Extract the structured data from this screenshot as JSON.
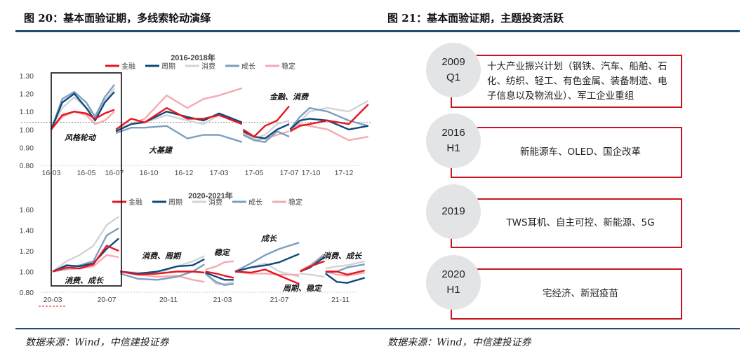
{
  "left_figure": {
    "title": "图 20：基本面验证期，多线索轮动演绎",
    "source": "数据来源：Wind，中信建投证券"
  },
  "right_figure": {
    "title": "图 21：基本面验证期，主题投资活跃",
    "source": "数据来源：Wind，中信建投证券",
    "items": [
      {
        "year": "2009",
        "period": "Q1",
        "text": "十大产业振兴计划（钢铁、汽车、船舶、石化、纺织、轻工、有色金属、装备制造、电子信息以及物流业）、军工企业重组"
      },
      {
        "year": "2016",
        "period": "H1",
        "text": "新能源车、OLED、国企改革"
      },
      {
        "year": "2019",
        "period": "",
        "text": "TWS耳机、自主可控、新能源、5G"
      },
      {
        "year": "2020",
        "period": "H1",
        "text": "宅经济、新冠疫苗"
      }
    ],
    "accent_color": "#c8141e"
  },
  "colors": {
    "rule": "#1f4e79",
    "金融": "#e8141e",
    "周期": "#0d4a7a",
    "消费": "#d0d4d8",
    "成长": "#7d9fbf",
    "稳定": "#f4aab0"
  },
  "chart_data": [
    {
      "type": "line",
      "title": "2016-2018年",
      "series_names": [
        "金融",
        "周期",
        "消费",
        "成长",
        "稳定"
      ],
      "ylim": [
        0.8,
        1.3
      ],
      "yticks": [
        "1.30",
        "1.20",
        "1.10",
        "1.00",
        "0.90",
        "0.80"
      ],
      "xticks": [
        "16-03",
        "16-05",
        "16-07",
        "16-10",
        "16-12",
        "17-03",
        "17-05",
        "17-07",
        "17-10",
        "17-12"
      ],
      "reference_line": 1.04,
      "annotations": [
        "风格轮动",
        "大基建",
        "金融、消费"
      ],
      "segments": [
        {
          "x": [
            "2016-03-01",
            "2016-03-20",
            "2016-04-10",
            "2016-05-01",
            "2016-05-20",
            "2016-06-10",
            "2016-07-01"
          ],
          "series": {
            "金融": [
              1.0,
              1.08,
              1.1,
              1.09,
              1.06,
              1.09,
              1.11
            ],
            "周期": [
              1.0,
              1.15,
              1.2,
              1.12,
              1.05,
              1.15,
              1.21
            ],
            "消费": [
              1.0,
              1.12,
              1.18,
              1.12,
              1.08,
              1.16,
              1.23
            ],
            "成长": [
              1.0,
              1.17,
              1.21,
              1.15,
              1.07,
              1.18,
              1.25
            ],
            "稳定": [
              1.0,
              1.07,
              1.1,
              1.08,
              1.03,
              1.05,
              1.1
            ]
          }
        },
        {
          "x": [
            "2016-07-05",
            "2016-08-15",
            "2016-09-20",
            "2016-11-01",
            "2016-12-10",
            "2017-01-20",
            "2017-03-01",
            "2017-04-10"
          ],
          "series": {
            "金融": [
              1.0,
              1.06,
              1.04,
              1.12,
              1.06,
              1.06,
              1.08,
              1.03
            ],
            "周期": [
              0.99,
              1.03,
              1.04,
              1.1,
              1.07,
              1.05,
              1.09,
              1.04
            ],
            "消费": [
              0.99,
              1.03,
              1.04,
              1.08,
              1.05,
              1.03,
              1.08,
              1.04
            ],
            "成长": [
              0.98,
              1.01,
              1.01,
              1.02,
              0.95,
              0.97,
              0.97,
              0.93
            ],
            "稳定": [
              1.0,
              1.03,
              1.06,
              1.19,
              1.12,
              1.17,
              1.19,
              1.23
            ]
          }
        },
        {
          "x": [
            "2017-04-12",
            "2017-05-01",
            "2017-05-20",
            "2017-06-10",
            "2017-07-01"
          ],
          "series": {
            "金融": [
              1.0,
              0.96,
              1.02,
              1.05,
              1.13
            ],
            "周期": [
              0.99,
              0.96,
              0.95,
              1.0,
              1.03
            ],
            "消费": [
              0.99,
              0.95,
              0.97,
              1.03,
              1.05
            ],
            "成长": [
              0.97,
              0.94,
              0.93,
              0.99,
              0.96
            ],
            "稳定": [
              0.98,
              0.94,
              0.95,
              0.97,
              0.99
            ]
          }
        },
        {
          "x": [
            "2017-07-05",
            "2017-08-15",
            "2017-09-25",
            "2017-11-01",
            "2017-12-10",
            "2018-01-15"
          ],
          "series": {
            "金融": [
              0.99,
              1.02,
              1.03,
              1.05,
              1.03,
              1.14
            ],
            "周期": [
              1.0,
              1.05,
              1.06,
              1.05,
              1.0,
              1.02
            ],
            "消费": [
              1.0,
              1.04,
              1.1,
              1.12,
              1.1,
              1.16
            ],
            "成长": [
              1.0,
              1.07,
              1.12,
              1.1,
              1.05,
              1.02
            ],
            "稳定": [
              1.0,
              1.03,
              1.02,
              1.0,
              0.94,
              0.96
            ]
          }
        }
      ]
    },
    {
      "type": "line",
      "title": "2020-2021年",
      "series_names": [
        "金融",
        "周期",
        "消费",
        "成长",
        "稳定"
      ],
      "ylim": [
        0.8,
        1.6
      ],
      "yticks": [
        "1.60",
        "1.40",
        "1.20",
        "1.00",
        "0.80"
      ],
      "xticks": [
        "20-03",
        "20-07",
        "20-11",
        "21-03",
        "21-07",
        "21-11"
      ],
      "annotations": [
        "消费、成长",
        "消费、周期",
        "稳定",
        "成长",
        "周期、稳定",
        "消费、成长"
      ],
      "segments": [
        {
          "x": [
            "2020-03-01",
            "2020-04-01",
            "2020-05-01",
            "2020-06-01",
            "2020-07-01",
            "2020-07-25"
          ],
          "series": {
            "金融": [
              1.0,
              1.04,
              1.03,
              1.07,
              1.25,
              1.2
            ],
            "周期": [
              1.0,
              1.06,
              1.05,
              1.08,
              1.22,
              1.32
            ],
            "消费": [
              1.0,
              1.1,
              1.16,
              1.25,
              1.45,
              1.53
            ],
            "成长": [
              1.0,
              1.03,
              1.06,
              1.1,
              1.35,
              1.42
            ],
            "稳定": [
              1.0,
              1.02,
              1.03,
              1.05,
              1.16,
              1.14
            ]
          }
        },
        {
          "x": [
            "2020-07-28",
            "2020-09-01",
            "2020-10-10",
            "2020-11-20",
            "2020-12-25",
            "2021-01-20"
          ],
          "series": {
            "金融": [
              1.0,
              0.97,
              0.98,
              1.0,
              1.0,
              0.99
            ],
            "周期": [
              1.0,
              0.98,
              1.0,
              1.05,
              1.06,
              1.12
            ],
            "消费": [
              1.0,
              0.99,
              0.98,
              1.05,
              1.1,
              1.15
            ],
            "成长": [
              0.98,
              0.93,
              0.92,
              0.95,
              1.0,
              1.07
            ],
            "稳定": [
              1.0,
              0.97,
              0.95,
              0.96,
              0.92,
              0.9
            ]
          }
        },
        {
          "x": [
            "2021-01-22",
            "2021-02-15",
            "2021-03-05",
            "2021-03-25"
          ],
          "series": {
            "金融": [
              1.0,
              0.98,
              0.96,
              0.94
            ],
            "周期": [
              0.99,
              0.95,
              0.92,
              0.92
            ],
            "消费": [
              0.98,
              0.88,
              0.88,
              0.9
            ],
            "成长": [
              0.98,
              0.9,
              0.87,
              0.88
            ],
            "稳定": [
              1.02,
              1.05,
              1.09,
              1.1
            ]
          }
        },
        {
          "x": [
            "2021-03-28",
            "2021-05-01",
            "2021-06-01",
            "2021-07-01",
            "2021-08-10"
          ],
          "series": {
            "金融": [
              1.0,
              0.99,
              1.02,
              0.96,
              0.88
            ],
            "周期": [
              1.0,
              1.04,
              1.06,
              1.09,
              1.17
            ],
            "消费": [
              1.0,
              1.04,
              1.08,
              1.0,
              0.95
            ],
            "成长": [
              1.0,
              1.08,
              1.16,
              1.22,
              1.28
            ],
            "稳定": [
              1.0,
              0.98,
              0.98,
              0.97,
              0.97
            ]
          }
        },
        {
          "x": [
            "2021-08-12",
            "2021-09-01",
            "2021-09-30"
          ],
          "series": {
            "金融": [
              1.0,
              1.05,
              1.1
            ],
            "周期": [
              1.0,
              1.04,
              1.14
            ],
            "消费": [
              0.98,
              0.97,
              0.95
            ],
            "成长": [
              1.0,
              1.05,
              1.16
            ],
            "稳定": [
              1.01,
              1.06,
              1.17
            ]
          }
        },
        {
          "x": [
            "2021-10-02",
            "2021-10-25",
            "2021-11-15",
            "2021-12-20"
          ],
          "series": {
            "金融": [
              1.0,
              1.0,
              0.97,
              1.01
            ],
            "周期": [
              0.98,
              0.9,
              0.89,
              0.94
            ],
            "消费": [
              1.03,
              1.05,
              1.06,
              1.1
            ],
            "成长": [
              0.99,
              1.0,
              1.04,
              1.07
            ],
            "稳定": [
              1.0,
              0.97,
              0.96,
              0.99
            ]
          }
        }
      ]
    }
  ]
}
